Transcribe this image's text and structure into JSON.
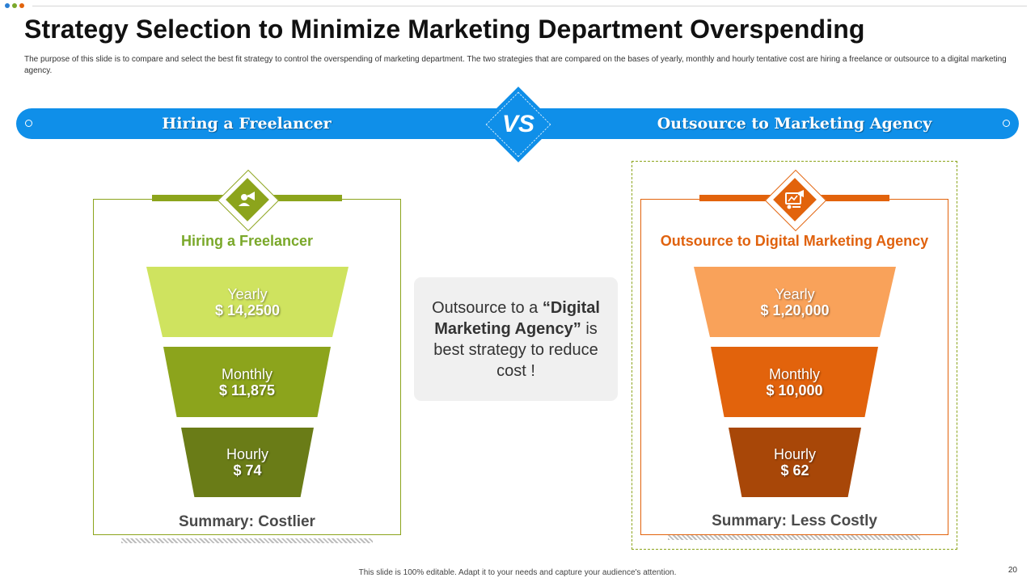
{
  "colors": {
    "blue": "#0f8fe9",
    "green_light": "#cfe35f",
    "green_mid": "#8ca41c",
    "green_dark": "#6a7c17",
    "green_text": "#7aa82a",
    "orange_light": "#f9a25a",
    "orange_mid": "#e2630c",
    "orange_dark": "#a84708",
    "orange_text": "#e0620e"
  },
  "slide": {
    "title": "Strategy Selection to Minimize Marketing Department Overspending",
    "description": "The purpose of this slide is to compare and select the best fit strategy to control the overspending of marketing department. The two strategies that are compared on the bases of yearly, monthly and hourly tentative cost are hiring a freelance or outsource to a digital marketing agency.",
    "footer": "This slide is 100% editable. Adapt it to your needs and capture your audience's attention.",
    "page_number": "20"
  },
  "comparison_bar": {
    "left_label": "Hiring a Freelancer",
    "vs_label": "VS",
    "right_label": "Outsource to Marketing Agency"
  },
  "left_card": {
    "icon": "megaphone-person-icon",
    "heading": "Hiring a Freelancer",
    "steps": [
      {
        "period": "Yearly",
        "value": "$ 14,2500"
      },
      {
        "period": "Monthly",
        "value": "$ 11,875"
      },
      {
        "period": "Hourly",
        "value": "$ 74"
      }
    ],
    "summary": "Summary: Costlier"
  },
  "right_card": {
    "icon": "digital-marketing-icon",
    "heading": "Outsource to Digital Marketing Agency",
    "steps": [
      {
        "period": "Yearly",
        "value": "$ 1,20,000"
      },
      {
        "period": "Monthly",
        "value": "$ 10,000"
      },
      {
        "period": "Hourly",
        "value": "$ 62"
      }
    ],
    "summary": "Summary: Less Costly"
  },
  "center_note": {
    "prefix": "Outsource to a ",
    "highlight": "“Digital Marketing Agency”",
    "suffix": " is best strategy to reduce cost !"
  }
}
